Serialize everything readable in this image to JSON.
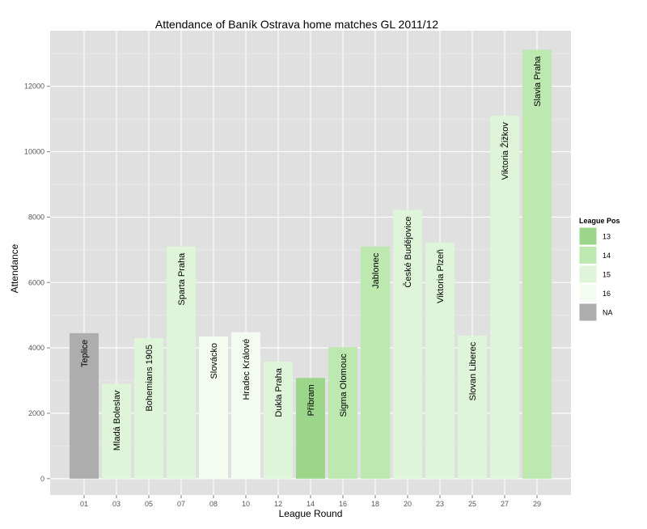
{
  "chart_data": {
    "type": "bar",
    "title": "Attendance of Baník Ostrava home matches GL 2011/12",
    "xlabel": "League Round",
    "ylabel": "Attendance",
    "ylim": [
      -500,
      13700
    ],
    "yticks": [
      0,
      2000,
      4000,
      6000,
      8000,
      10000,
      12000
    ],
    "grid": true,
    "legend_position": "right",
    "categories": [
      "01",
      "03",
      "05",
      "07",
      "08",
      "10",
      "12",
      "14",
      "16",
      "18",
      "20",
      "23",
      "25",
      "27",
      "29"
    ],
    "series": [
      {
        "values": [
          4450,
          2900,
          4300,
          7100,
          4350,
          4480,
          3580,
          3080,
          4020,
          7100,
          8220,
          7220,
          4380,
          11100,
          13120
        ],
        "labels": [
          "Teplice",
          "Mladá Boleslav",
          "Bohemians 1905",
          "Sparta Praha",
          "Slovácko",
          "Hradec Králové",
          "Dukla Praha",
          "Příbram",
          "Sigma Olomouc",
          "Jablonec",
          "České Budějovice",
          "Viktoria Plzeň",
          "Slovan Liberec",
          "Viktoria Žižkov",
          "Slavia Praha"
        ],
        "league_pos": [
          "NA",
          "15",
          "15",
          "15",
          "16",
          "16",
          "15",
          "13",
          "14",
          "14",
          "15",
          "15",
          "15",
          "15",
          "14"
        ]
      }
    ],
    "legend": {
      "title": "League Pos",
      "entries": [
        {
          "label": "13",
          "color": "#9bd68a"
        },
        {
          "label": "14",
          "color": "#bde8b0"
        },
        {
          "label": "15",
          "color": "#dff5d9"
        },
        {
          "label": "16",
          "color": "#f4fcf2"
        },
        {
          "label": "NA",
          "color": "#adadad"
        }
      ]
    }
  }
}
